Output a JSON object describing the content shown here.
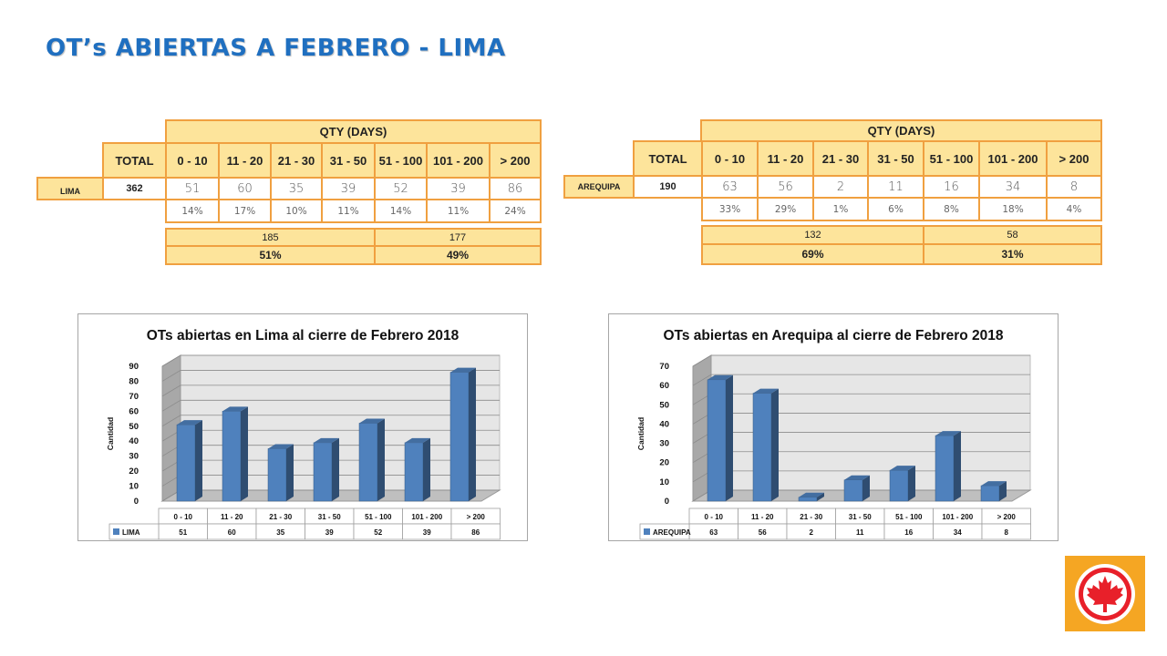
{
  "title": "OT’s ABIERTAS A FEBRERO - LIMA",
  "tables": [
    {
      "header": "QTY (DAYS)",
      "total_label": "TOTAL",
      "city": "LIMA",
      "total": "362",
      "ranges": [
        "0 - 10",
        "11 - 20",
        "21 - 30",
        "31 - 50",
        "51 - 100",
        "101 - 200",
        "> 200"
      ],
      "values": [
        "51",
        "60",
        "35",
        "39",
        "52",
        "39",
        "86"
      ],
      "percents": [
        "14%",
        "17%",
        "10%",
        "11%",
        "14%",
        "11%",
        "24%"
      ],
      "split_counts": [
        "185",
        "177"
      ],
      "split_percents": [
        "51%",
        "49%"
      ]
    },
    {
      "header": "QTY (DAYS)",
      "total_label": "TOTAL",
      "city": "AREQUIPA",
      "total": "190",
      "ranges": [
        "0 - 10",
        "11 - 20",
        "21 - 30",
        "31 - 50",
        "51 - 100",
        "101 - 200",
        "> 200"
      ],
      "values": [
        "63",
        "56",
        "2",
        "11",
        "16",
        "34",
        "8"
      ],
      "percents": [
        "33%",
        "29%",
        "1%",
        "6%",
        "8%",
        "18%",
        "4%"
      ],
      "split_counts": [
        "132",
        "58"
      ],
      "split_percents": [
        "69%",
        "31%"
      ]
    }
  ],
  "chart_data": [
    {
      "type": "bar",
      "title": "OTs abiertas en Lima al cierre de Febrero 2018",
      "ylabel": "Cantidad",
      "xlabel": "",
      "categories": [
        "0 - 10",
        "11 - 20",
        "21 - 30",
        "31 - 50",
        "51 - 100",
        "101 - 200",
        "> 200"
      ],
      "series": [
        {
          "name": "LIMA",
          "values": [
            51,
            60,
            35,
            39,
            52,
            39,
            86
          ]
        }
      ],
      "ylim": [
        0,
        90
      ],
      "ytick_step": 10,
      "grid": true,
      "style": "3d",
      "legend": "data-table",
      "color": "#4f81bd"
    },
    {
      "type": "bar",
      "title": "OTs abiertas en Arequipa al cierre de Febrero 2018",
      "ylabel": "Cantidad",
      "xlabel": "",
      "categories": [
        "0 - 10",
        "11 - 20",
        "21 - 30",
        "31 - 50",
        "51 - 100",
        "101 - 200",
        "> 200"
      ],
      "series": [
        {
          "name": "AREQUIPA",
          "values": [
            63,
            56,
            2,
            11,
            16,
            34,
            8
          ]
        }
      ],
      "ylim": [
        0,
        70
      ],
      "ytick_step": 10,
      "grid": true,
      "style": "3d",
      "legend": "data-table",
      "color": "#4f81bd"
    }
  ],
  "logo": {
    "icon": "maple-leaf-icon",
    "bg_color": "#f5a623",
    "circle_color": "#e8202a"
  }
}
